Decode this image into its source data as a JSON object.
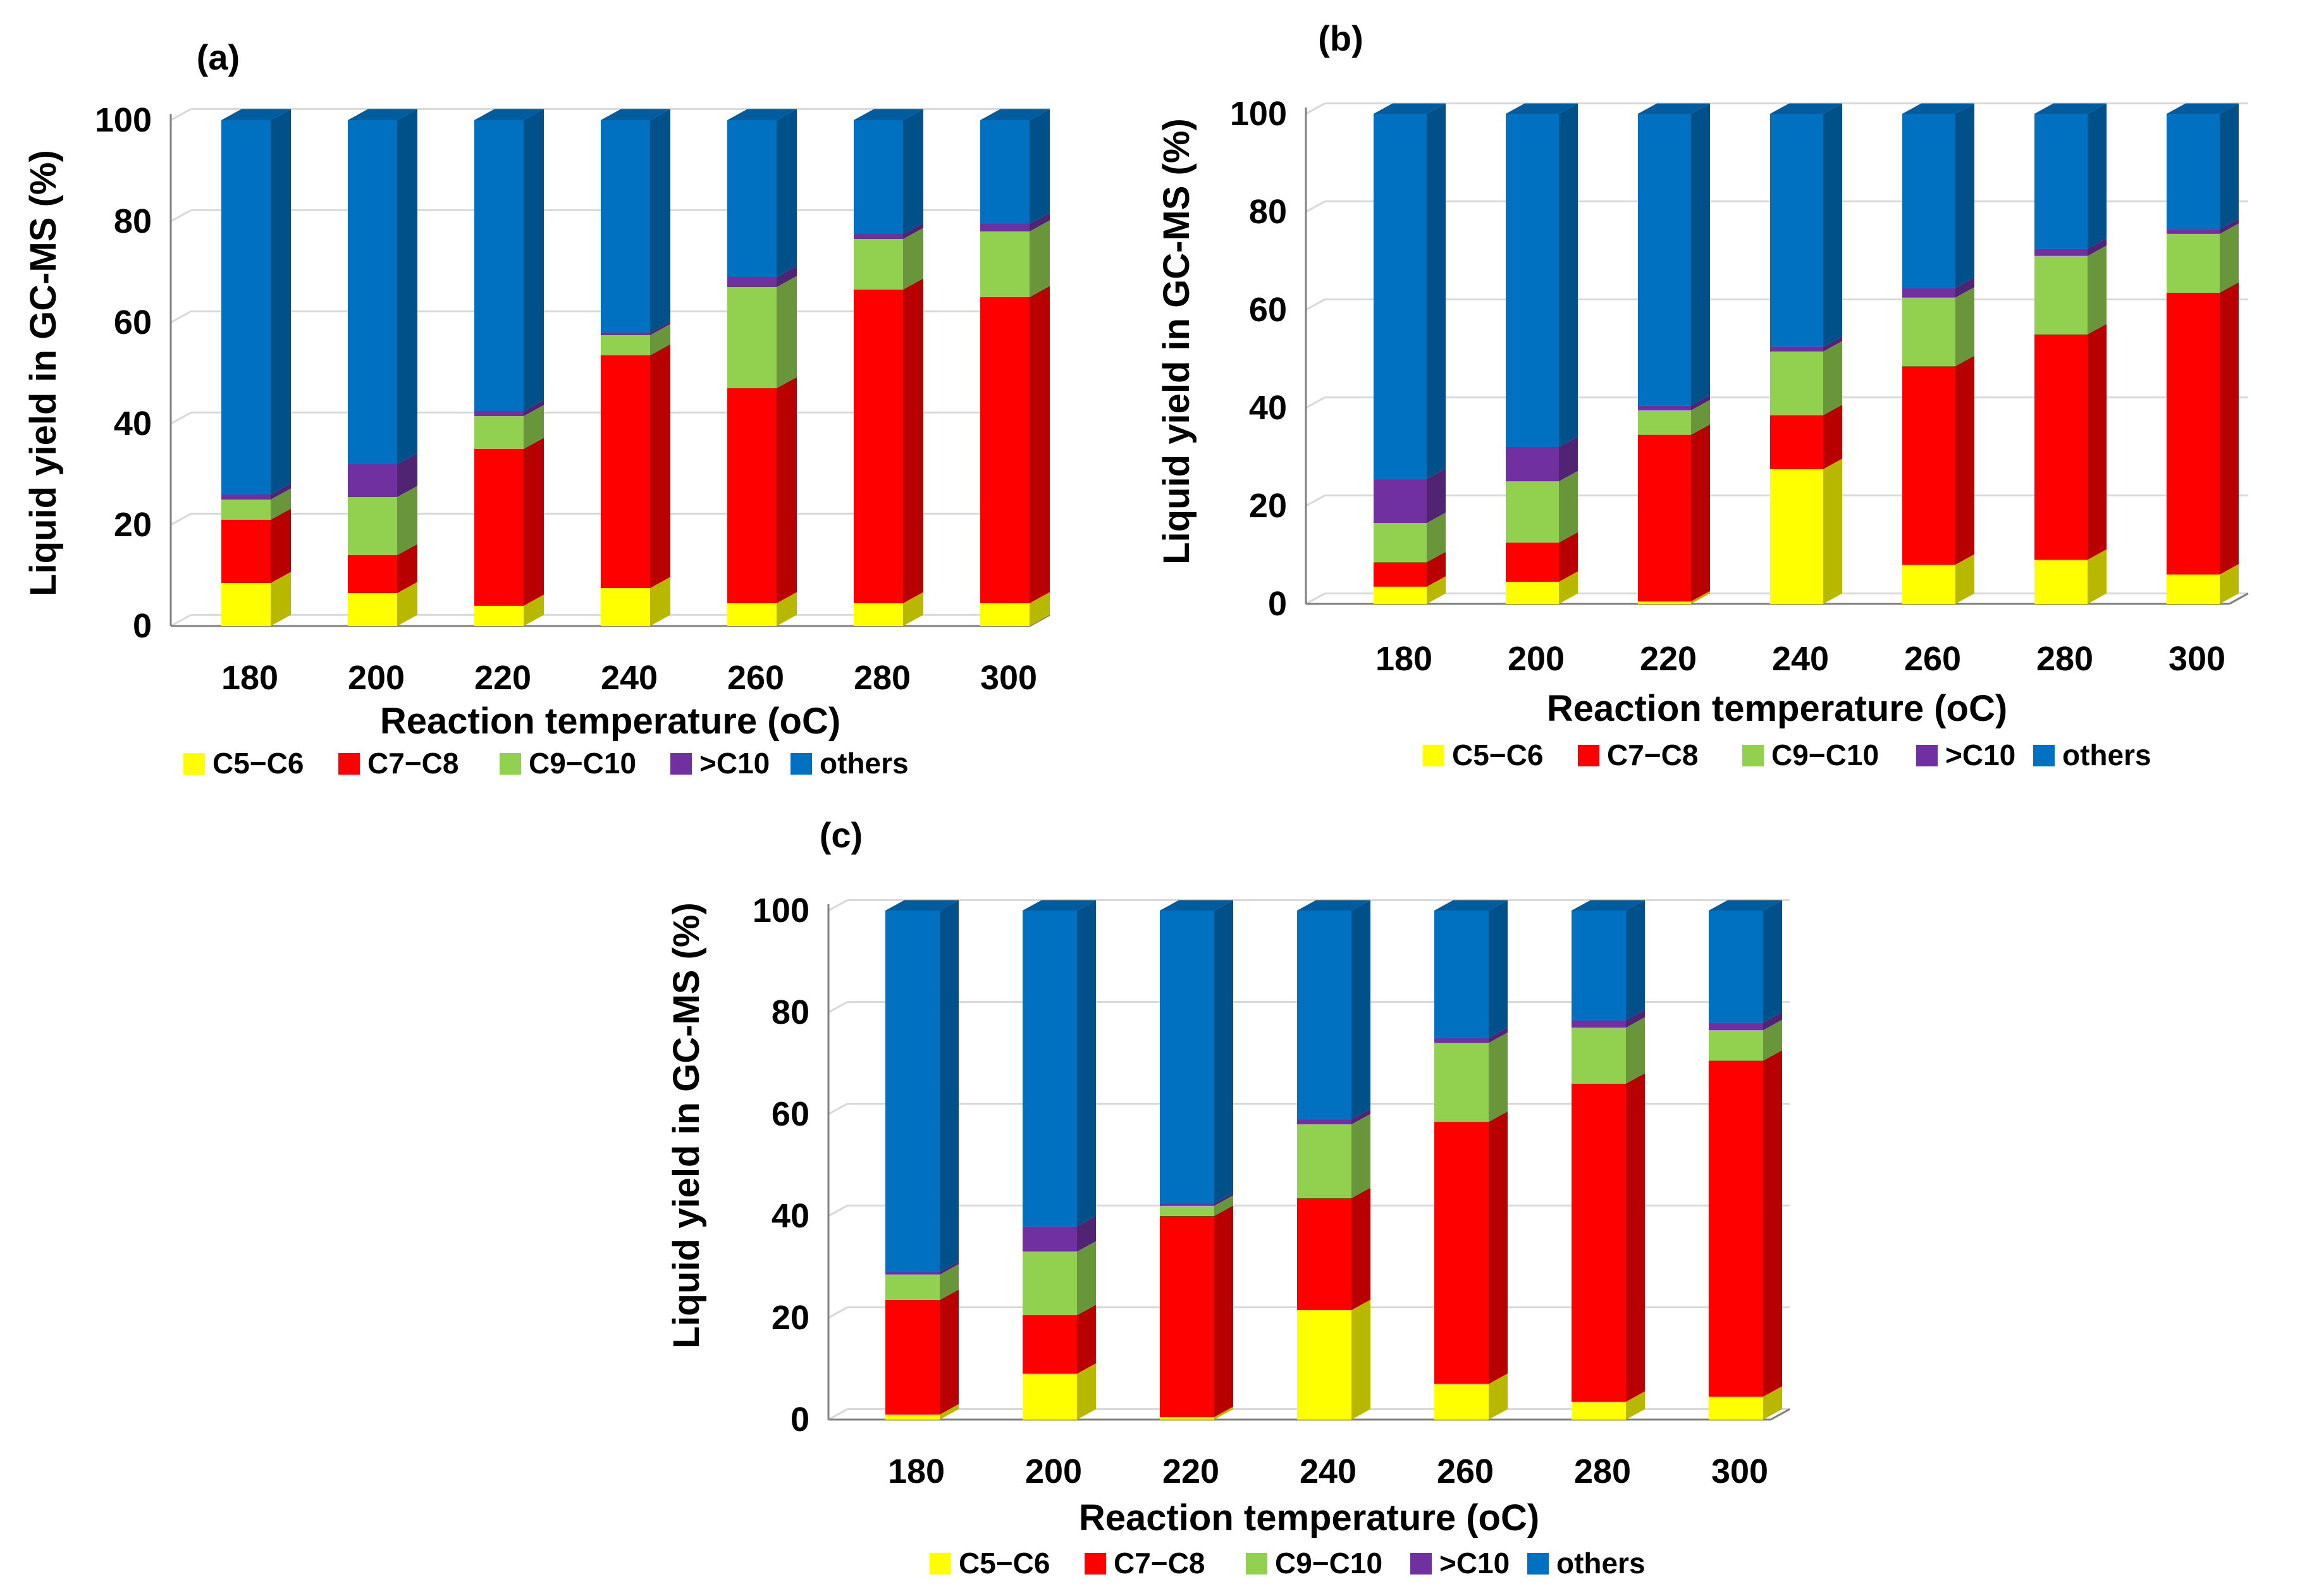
{
  "chart_data": [
    {
      "type": "bar",
      "stacked": true,
      "panel_label": "(a)",
      "categories": [
        "180",
        "200",
        "220",
        "240",
        "260",
        "280",
        "300"
      ],
      "series": [
        {
          "name": "C5−C6",
          "values": [
            8.5,
            6.5,
            4,
            7.5,
            4.5,
            4.5,
            4.5
          ]
        },
        {
          "name": "C7−C8",
          "values": [
            12.5,
            7.5,
            31,
            46,
            42.5,
            62,
            60.5
          ]
        },
        {
          "name": "C9−C10",
          "values": [
            4,
            11.5,
            6.5,
            4,
            20,
            10,
            13
          ]
        },
        {
          "name": ">C10",
          "values": [
            1,
            6.5,
            1,
            0.5,
            2,
            1,
            1.5
          ]
        },
        {
          "name": "others",
          "values": [
            74,
            68,
            57.5,
            42,
            31,
            22.5,
            20.5
          ]
        }
      ],
      "colors": [
        "#ffff00",
        "#ff0000",
        "#92d050",
        "#7030a0",
        "#0070c0"
      ],
      "xlabel": "Reaction temperature (oC)",
      "ylabel": "Liquid yield in GC-MS (%)",
      "ylim": [
        0,
        100
      ],
      "yticks": [
        0,
        20,
        40,
        60,
        80,
        100
      ],
      "grid": true,
      "legend": "bottom"
    },
    {
      "type": "bar",
      "stacked": true,
      "panel_label": "(b)",
      "categories": [
        "180",
        "200",
        "220",
        "240",
        "260",
        "280",
        "300"
      ],
      "series": [
        {
          "name": "C5−C6",
          "values": [
            3.5,
            4.5,
            0.5,
            27.5,
            8,
            9,
            6
          ]
        },
        {
          "name": "C7−C8",
          "values": [
            5,
            8,
            34,
            11,
            40.5,
            46,
            57.5
          ]
        },
        {
          "name": "C9−C10",
          "values": [
            8,
            12.5,
            5,
            13,
            14,
            16,
            12
          ]
        },
        {
          "name": ">C10",
          "values": [
            9,
            7,
            1,
            1,
            2,
            1.5,
            1
          ]
        },
        {
          "name": "others",
          "values": [
            74.5,
            68,
            59.5,
            47.5,
            35.5,
            27.5,
            23.5
          ]
        }
      ],
      "colors": [
        "#ffff00",
        "#ff0000",
        "#92d050",
        "#7030a0",
        "#0070c0"
      ],
      "xlabel": "Reaction temperature (oC)",
      "ylabel": "Liquid yield in GC-MS (%)",
      "ylim": [
        0,
        100
      ],
      "yticks": [
        0,
        20,
        40,
        60,
        80,
        100
      ],
      "grid": true,
      "legend": "bottom"
    },
    {
      "type": "bar",
      "stacked": true,
      "panel_label": "(c)",
      "categories": [
        "180",
        "200",
        "220",
        "240",
        "260",
        "280",
        "300"
      ],
      "series": [
        {
          "name": "C5−C6",
          "values": [
            1,
            9,
            0.5,
            21.5,
            7,
            3.5,
            4.5
          ]
        },
        {
          "name": "C7−C8",
          "values": [
            22.5,
            11.5,
            39.5,
            22,
            51.5,
            62.5,
            66
          ]
        },
        {
          "name": "C9−C10",
          "values": [
            5,
            12.5,
            2,
            14.5,
            15.5,
            11,
            6
          ]
        },
        {
          "name": ">C10",
          "values": [
            0.5,
            5,
            0.5,
            1,
            1,
            1.5,
            1.5
          ]
        },
        {
          "name": "others",
          "values": [
            71,
            62,
            57.5,
            41,
            25,
            21.5,
            22
          ]
        }
      ],
      "colors": [
        "#ffff00",
        "#ff0000",
        "#92d050",
        "#7030a0",
        "#0070c0"
      ],
      "xlabel": "Reaction temperature (oC)",
      "ylabel": "Liquid yield in GC-MS (%)",
      "ylim": [
        0,
        100
      ],
      "yticks": [
        0,
        20,
        40,
        60,
        80,
        100
      ],
      "grid": true,
      "legend": "bottom"
    }
  ]
}
